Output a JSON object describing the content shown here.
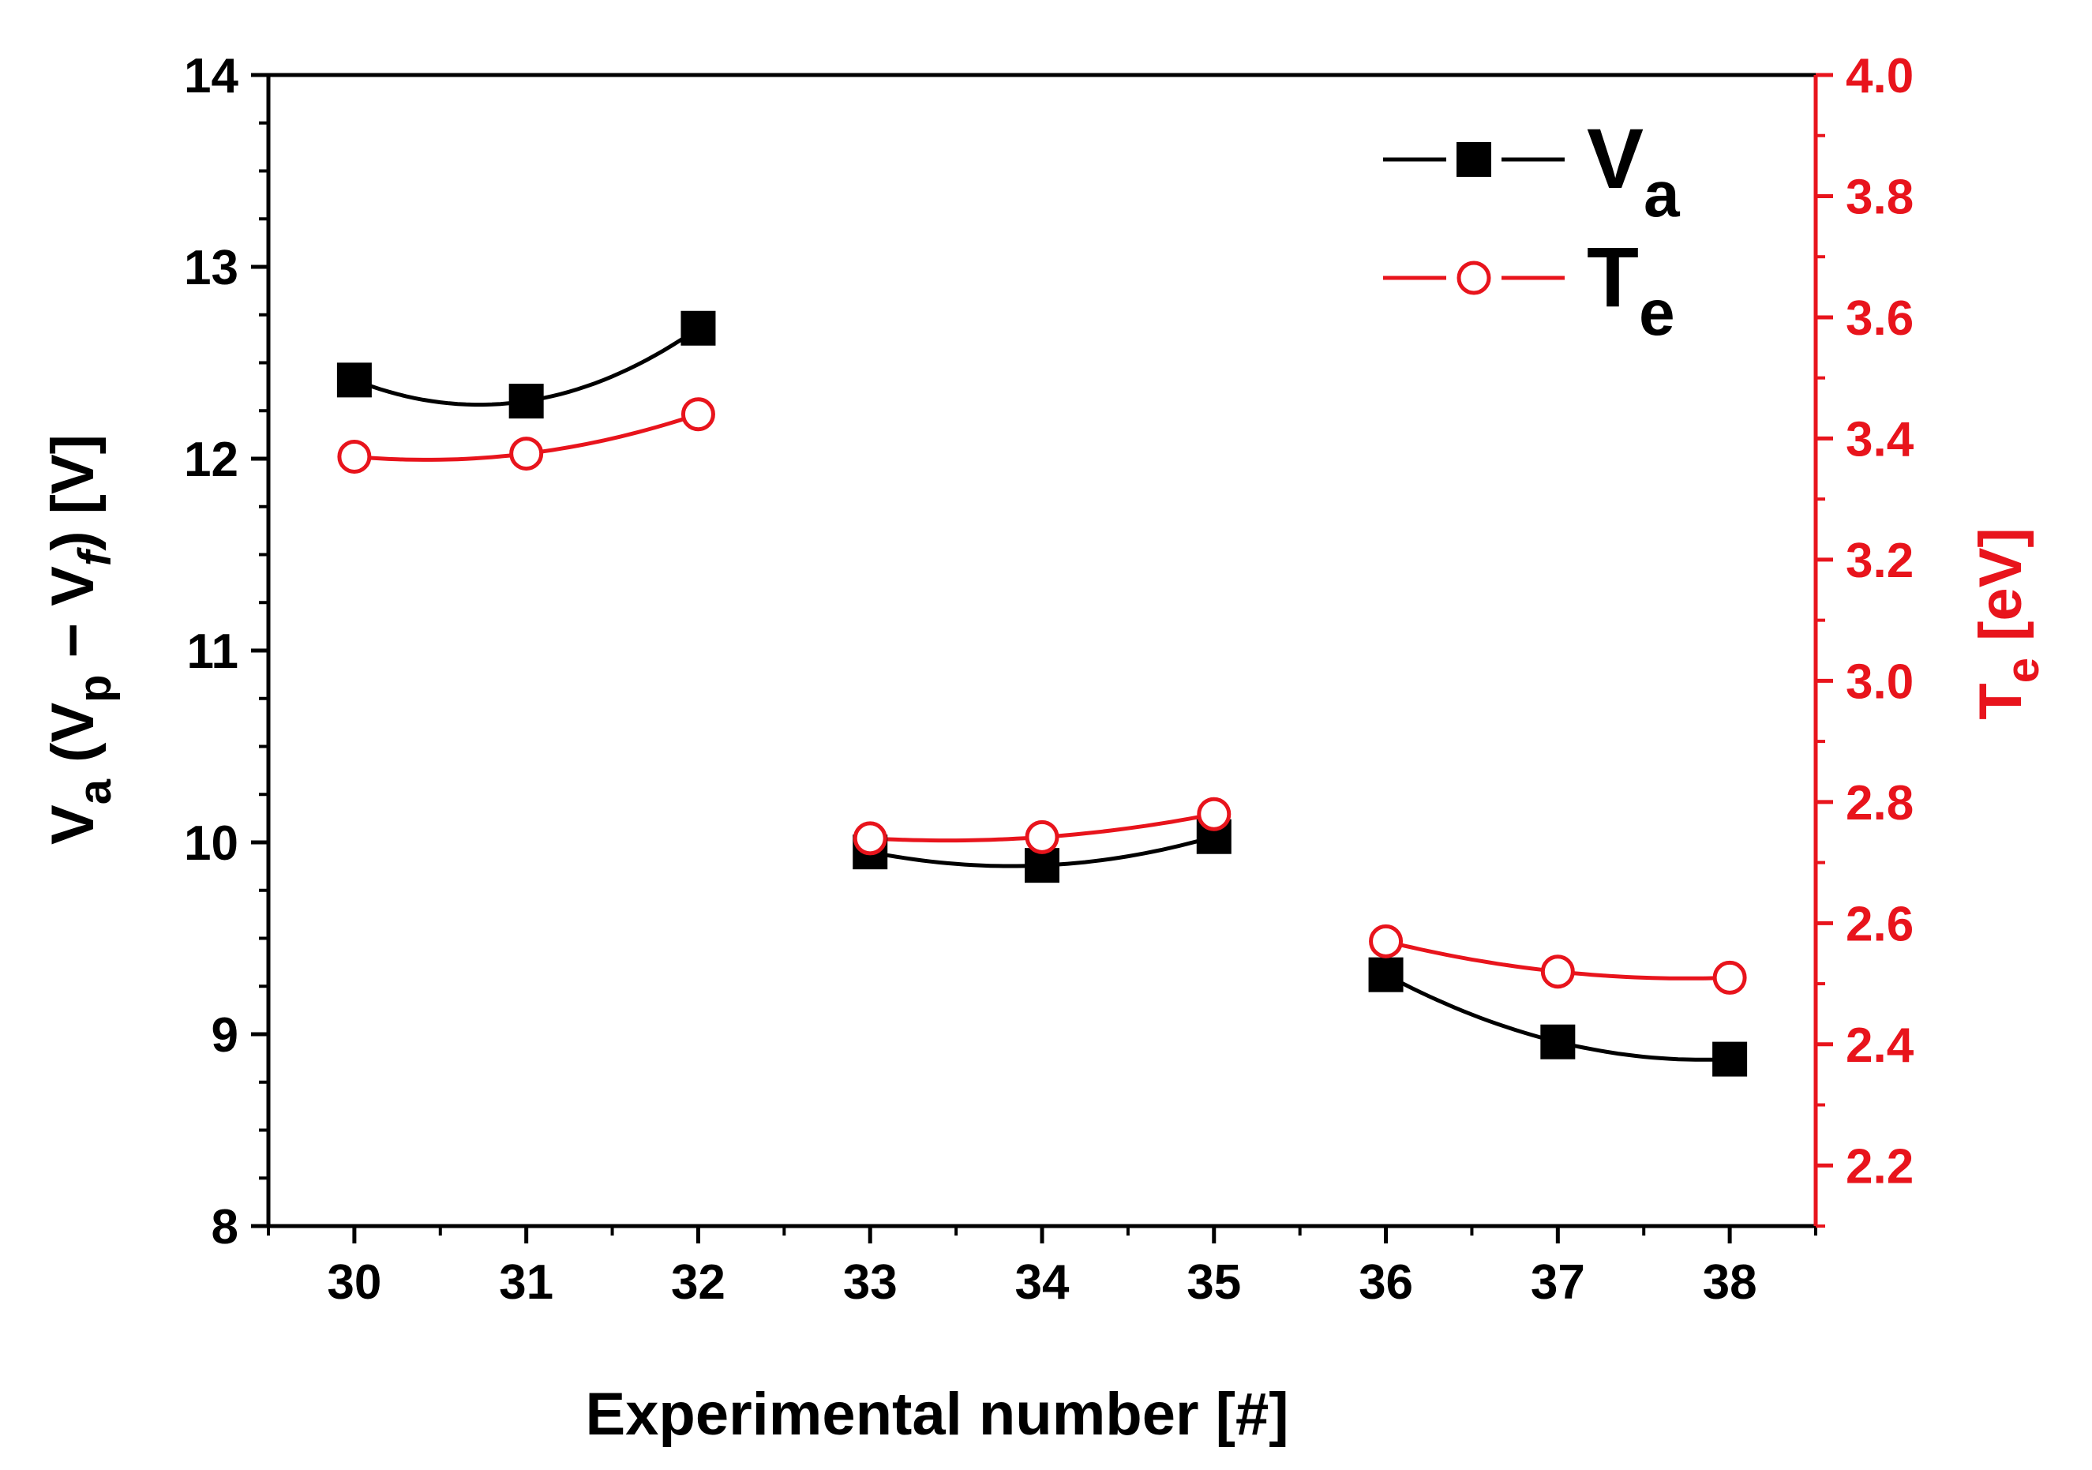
{
  "chart_data": {
    "type": "line",
    "x": [
      30,
      31,
      32,
      33,
      34,
      35,
      36,
      37,
      38
    ],
    "x_ticks": [
      "30",
      "31",
      "32",
      "33",
      "34",
      "35",
      "36",
      "37",
      "38"
    ],
    "xlim": [
      29.5,
      38.5
    ],
    "xlabel": "Experimental number [#]",
    "segments": [
      [
        30,
        31,
        32
      ],
      [
        33,
        34,
        35
      ],
      [
        36,
        37,
        38
      ]
    ],
    "left_axis": {
      "label": "V",
      "label_sub": "a",
      "label_rest": " (V",
      "label_sub2": "p",
      "label_mid": " − V",
      "label_sub3": "f",
      "label_end": ") [V]",
      "ylim": [
        8,
        14
      ],
      "ticks": [
        "8",
        "9",
        "10",
        "11",
        "12",
        "13",
        "14"
      ],
      "color": "#000000"
    },
    "right_axis": {
      "label": "T",
      "label_sub": "e",
      "label_end": " [eV]",
      "ylim": [
        2.1,
        4.0
      ],
      "ticks": [
        "2.2",
        "2.4",
        "2.6",
        "2.8",
        "3.0",
        "3.2",
        "3.4",
        "3.6",
        "3.8",
        "4.0"
      ],
      "color": "#e8141c"
    },
    "series": [
      {
        "name": "V",
        "name_sub": "a",
        "axis": "left",
        "marker": "filled-square",
        "color": "#000000",
        "values": [
          12.41,
          12.3,
          12.68,
          9.95,
          9.88,
          10.03,
          9.31,
          8.96,
          8.87
        ]
      },
      {
        "name": "T",
        "name_sub": "e",
        "axis": "right",
        "marker": "open-circle",
        "color": "#e8141c",
        "values": [
          3.37,
          3.375,
          3.44,
          2.74,
          2.742,
          2.78,
          2.57,
          2.52,
          2.51
        ]
      }
    ],
    "legend_position": "top-right"
  }
}
